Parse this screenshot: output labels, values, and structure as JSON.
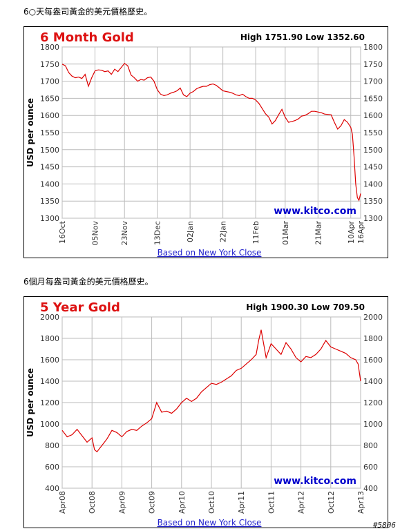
{
  "captions": [
    "6○天每盎司黃金的美元價格歷史。",
    "6個月每盎司黃金的美元價格歷史。"
  ],
  "footer_mark": "#5806",
  "colors": {
    "title": "#dd1111",
    "line": "#dd0000",
    "grid": "#bbbbbb",
    "url": "#0000cc",
    "link": "#2222cc"
  },
  "chart_data": [
    {
      "type": "line",
      "title": "6 Month Gold",
      "high_low": "High 1751.90 Low 1352.60",
      "ylabel": "USD per ounce",
      "url_text": "www.kitco.com",
      "footnote": "Based on New York Close",
      "ylim": [
        1300,
        1800
      ],
      "yticks": [
        1300,
        1350,
        1400,
        1450,
        1500,
        1550,
        1600,
        1650,
        1700,
        1750,
        1800
      ],
      "xlim": [
        0,
        182
      ],
      "xticks": [
        {
          "label": "16Oct",
          "x": 0
        },
        {
          "label": "05Nov",
          "x": 20
        },
        {
          "label": "23Nov",
          "x": 38
        },
        {
          "label": "13Dec",
          "x": 58
        },
        {
          "label": "02Jan",
          "x": 78
        },
        {
          "label": "22Jan",
          "x": 98
        },
        {
          "label": "11Feb",
          "x": 118
        },
        {
          "label": "01Mar",
          "x": 136
        },
        {
          "label": "21Mar",
          "x": 156
        },
        {
          "label": "10Apr",
          "x": 176
        },
        {
          "label": "16Apr",
          "x": 182
        }
      ],
      "series": [
        {
          "x": [
            0,
            2,
            4,
            6,
            8,
            10,
            12,
            14,
            16,
            18,
            20,
            22,
            24,
            26,
            28,
            30,
            32,
            34,
            36,
            38,
            40,
            42,
            44,
            46,
            48,
            50,
            52,
            54,
            56,
            58,
            60,
            62,
            64,
            66,
            68,
            70,
            72,
            74,
            76,
            78,
            80,
            82,
            84,
            86,
            88,
            90,
            92,
            94,
            96,
            98,
            100,
            102,
            104,
            106,
            108,
            110,
            112,
            114,
            116,
            118,
            120,
            122,
            124,
            126,
            128,
            130,
            132,
            134,
            136,
            138,
            140,
            142,
            144,
            146,
            148,
            150,
            152,
            154,
            156,
            158,
            160,
            162,
            164,
            166,
            168,
            170,
            172,
            174,
            176,
            177,
            178,
            179,
            180,
            181,
            182
          ],
          "y": [
            1750,
            1745,
            1725,
            1715,
            1710,
            1712,
            1708,
            1720,
            1685,
            1710,
            1730,
            1733,
            1732,
            1728,
            1730,
            1720,
            1735,
            1728,
            1740,
            1752,
            1745,
            1718,
            1710,
            1700,
            1705,
            1703,
            1710,
            1712,
            1700,
            1675,
            1662,
            1658,
            1660,
            1665,
            1668,
            1672,
            1680,
            1660,
            1655,
            1665,
            1670,
            1678,
            1682,
            1685,
            1685,
            1690,
            1692,
            1688,
            1680,
            1672,
            1670,
            1668,
            1665,
            1660,
            1658,
            1662,
            1655,
            1650,
            1650,
            1645,
            1635,
            1620,
            1605,
            1595,
            1575,
            1585,
            1602,
            1618,
            1595,
            1580,
            1582,
            1585,
            1590,
            1598,
            1600,
            1605,
            1612,
            1612,
            1610,
            1608,
            1604,
            1603,
            1602,
            1580,
            1560,
            1570,
            1588,
            1580,
            1565,
            1545,
            1480,
            1400,
            1360,
            1352,
            1372
          ]
        }
      ]
    },
    {
      "type": "line",
      "title": "5 Year Gold",
      "high_low": "High 1900.30 Low 709.50",
      "ylabel": "USD per ounce",
      "url_text": "www.kitco.com",
      "footnote": "Based on New York Close",
      "ylim": [
        400,
        2000
      ],
      "yticks": [
        400,
        600,
        800,
        1000,
        1200,
        1400,
        1600,
        1800,
        2000
      ],
      "xlim": [
        0,
        60
      ],
      "xticks": [
        {
          "label": "Apr08",
          "x": 0
        },
        {
          "label": "Oct08",
          "x": 6
        },
        {
          "label": "Apr09",
          "x": 12
        },
        {
          "label": "Oct09",
          "x": 18
        },
        {
          "label": "Apr10",
          "x": 24
        },
        {
          "label": "Oct10",
          "x": 30
        },
        {
          "label": "Apr11",
          "x": 36
        },
        {
          "label": "Oct11",
          "x": 42
        },
        {
          "label": "Apr12",
          "x": 48
        },
        {
          "label": "Oct12",
          "x": 54
        },
        {
          "label": "Apr13",
          "x": 60
        }
      ],
      "series": [
        {
          "x": [
            0,
            1,
            2,
            3,
            4,
            5,
            6,
            6.5,
            7,
            8,
            9,
            10,
            11,
            12,
            13,
            14,
            15,
            16,
            17,
            18,
            19,
            20,
            21,
            22,
            23,
            24,
            25,
            26,
            27,
            28,
            29,
            30,
            31,
            32,
            33,
            34,
            35,
            36,
            37,
            38,
            39,
            39.5,
            40,
            41,
            42,
            43,
            44,
            45,
            46,
            47,
            48,
            49,
            50,
            51,
            52,
            53,
            54,
            55,
            56,
            57,
            58,
            59,
            59.5,
            60
          ],
          "y": [
            940,
            880,
            900,
            950,
            890,
            830,
            870,
            760,
            740,
            800,
            860,
            940,
            920,
            880,
            930,
            950,
            940,
            980,
            1010,
            1050,
            1200,
            1110,
            1120,
            1100,
            1140,
            1200,
            1240,
            1210,
            1240,
            1300,
            1340,
            1380,
            1370,
            1390,
            1420,
            1450,
            1500,
            1520,
            1560,
            1600,
            1650,
            1780,
            1880,
            1620,
            1750,
            1700,
            1650,
            1760,
            1700,
            1620,
            1580,
            1630,
            1620,
            1650,
            1700,
            1780,
            1720,
            1700,
            1680,
            1660,
            1620,
            1600,
            1560,
            1400
          ]
        }
      ]
    }
  ]
}
